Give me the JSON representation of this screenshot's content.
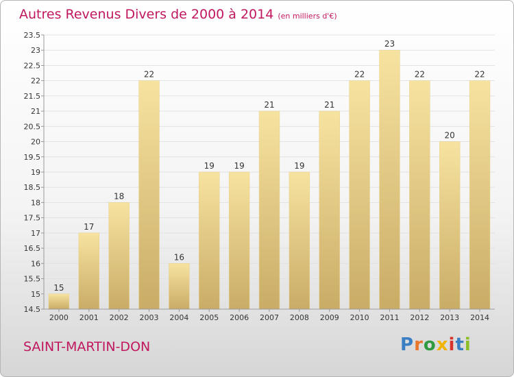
{
  "title": {
    "main": "Autres Revenus Divers de 2000 à 2014",
    "unit": "(en milliers d'€)"
  },
  "commune": "SAINT-MARTIN-DON",
  "logo": {
    "text": "Proxiti",
    "letter_colors": [
      "#3a7fc4",
      "#e8762b",
      "#2f9a3f",
      "#f0b400",
      "#d8342c",
      "#3a7fc4",
      "#8cbf26"
    ]
  },
  "colors": {
    "title": "#c0175f",
    "bar_light": "#f7e3a0",
    "bar_dark": "#c9ac66",
    "grid": "#e2e2e2",
    "axis": "#999999"
  },
  "chart_data": {
    "type": "bar",
    "title": "Autres Revenus Divers de 2000 à 2014",
    "subtitle": "(en milliers d'€)",
    "xlabel": "",
    "ylabel": "",
    "categories": [
      "2000",
      "2001",
      "2002",
      "2003",
      "2004",
      "2005",
      "2006",
      "2007",
      "2008",
      "2009",
      "2010",
      "2011",
      "2012",
      "2013",
      "2014"
    ],
    "values": [
      15,
      17,
      18,
      22,
      16,
      19,
      19,
      21,
      19,
      21,
      22,
      23,
      22,
      20,
      22
    ],
    "data_labels": [
      "15",
      "17",
      "18",
      "22",
      "16",
      "19",
      "19",
      "21",
      "19",
      "21",
      "22",
      "23",
      "22",
      "20",
      "22"
    ],
    "ylim": [
      14.5,
      23.5
    ],
    "yticks": [
      "14.5",
      "15",
      "15.5",
      "16",
      "16.5",
      "17",
      "17.5",
      "18",
      "18.5",
      "19",
      "19.5",
      "20",
      "20.5",
      "21",
      "21.5",
      "22",
      "22.5",
      "23",
      "23.5"
    ],
    "grid": true,
    "legend": "none"
  }
}
